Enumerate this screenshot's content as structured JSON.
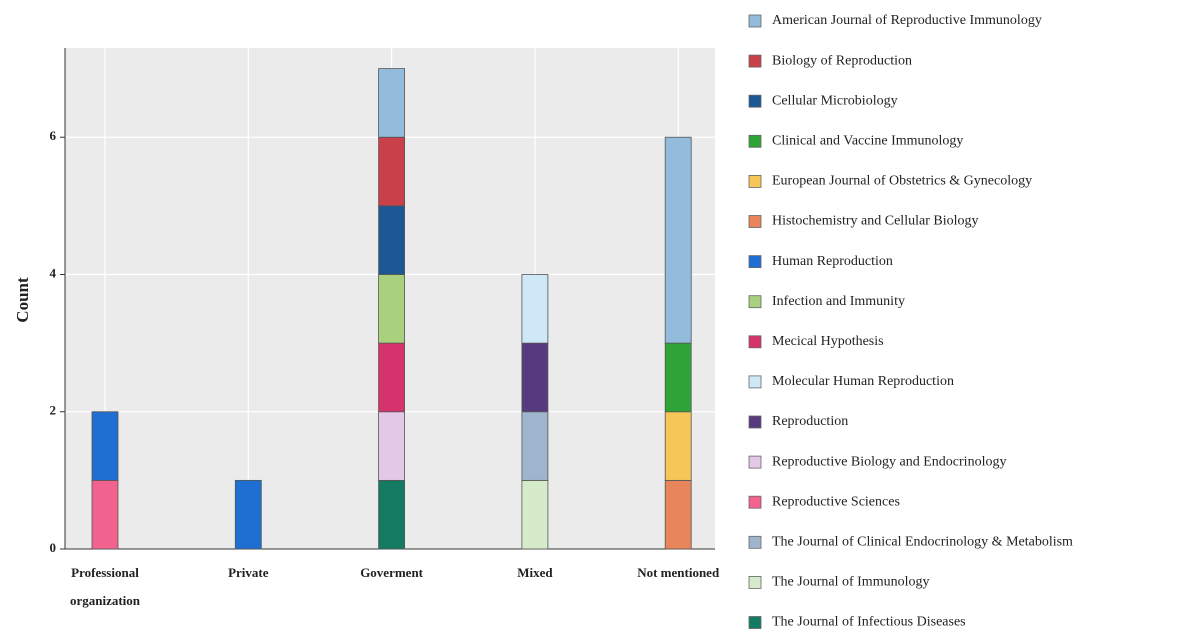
{
  "chart_data": {
    "type": "stacked_bar",
    "y_label": "Count",
    "categories": [
      "Professional organization",
      "Private",
      "Goverment",
      "Mixed",
      "Not mentioned"
    ],
    "ylim": [
      0,
      7.3
    ],
    "yticks": [
      0,
      2,
      4,
      6
    ],
    "grid": true,
    "series": [
      {
        "name": "American Journal  of Reproductive Immunology",
        "color": "#93bcdc",
        "values": [
          0,
          0,
          1,
          0,
          3
        ]
      },
      {
        "name": "Biology of Reproduction",
        "color": "#c8404a",
        "values": [
          0,
          0,
          1,
          0,
          0
        ]
      },
      {
        "name": "Cellular Microbiology",
        "color": "#1c5894",
        "values": [
          0,
          0,
          1,
          0,
          0
        ]
      },
      {
        "name": "Clinical and Vaccine Immunology",
        "color": "#2ea336",
        "values": [
          0,
          0,
          0,
          0,
          1
        ]
      },
      {
        "name": "European Journal of Obstetrics & Gynecology",
        "color": "#f6c659",
        "values": [
          0,
          0,
          0,
          0,
          1
        ]
      },
      {
        "name": "Histochemistry and Cellular Biology",
        "color": "#e8855a",
        "values": [
          0,
          0,
          0,
          0,
          1
        ]
      },
      {
        "name": "Human Reproduction",
        "color": "#1f6ed2",
        "values": [
          1,
          1,
          0,
          0,
          0
        ]
      },
      {
        "name": "Infection and Immunity",
        "color": "#a9d07d",
        "values": [
          0,
          0,
          1,
          0,
          0
        ]
      },
      {
        "name": "Mecical Hypothesis",
        "color": "#d5336b",
        "values": [
          0,
          0,
          1,
          0,
          0
        ]
      },
      {
        "name": "Molecular Human Reproduction",
        "color": "#cfe8f7",
        "values": [
          0,
          0,
          0,
          1,
          0
        ]
      },
      {
        "name": "Reproduction",
        "color": "#56397f",
        "values": [
          0,
          0,
          0,
          1,
          0
        ]
      },
      {
        "name": "Reproductive Biology and Endocrinology",
        "color": "#e3c9e7",
        "values": [
          0,
          0,
          1,
          0,
          0
        ]
      },
      {
        "name": "Reproductive Sciences",
        "color": "#f2628f",
        "values": [
          1,
          0,
          0,
          0,
          0
        ]
      },
      {
        "name": "The Journal of Clinical Endocrinology & Metabolism",
        "color": "#9fb5cd",
        "values": [
          0,
          0,
          0,
          1,
          0
        ]
      },
      {
        "name": "The Journal of Immunology",
        "color": "#d5ebc9",
        "values": [
          0,
          0,
          0,
          1,
          0
        ]
      },
      {
        "name": "The Journal of Infectious Diseases",
        "color": "#147a62",
        "values": [
          0,
          0,
          1,
          0,
          0
        ]
      }
    ]
  }
}
